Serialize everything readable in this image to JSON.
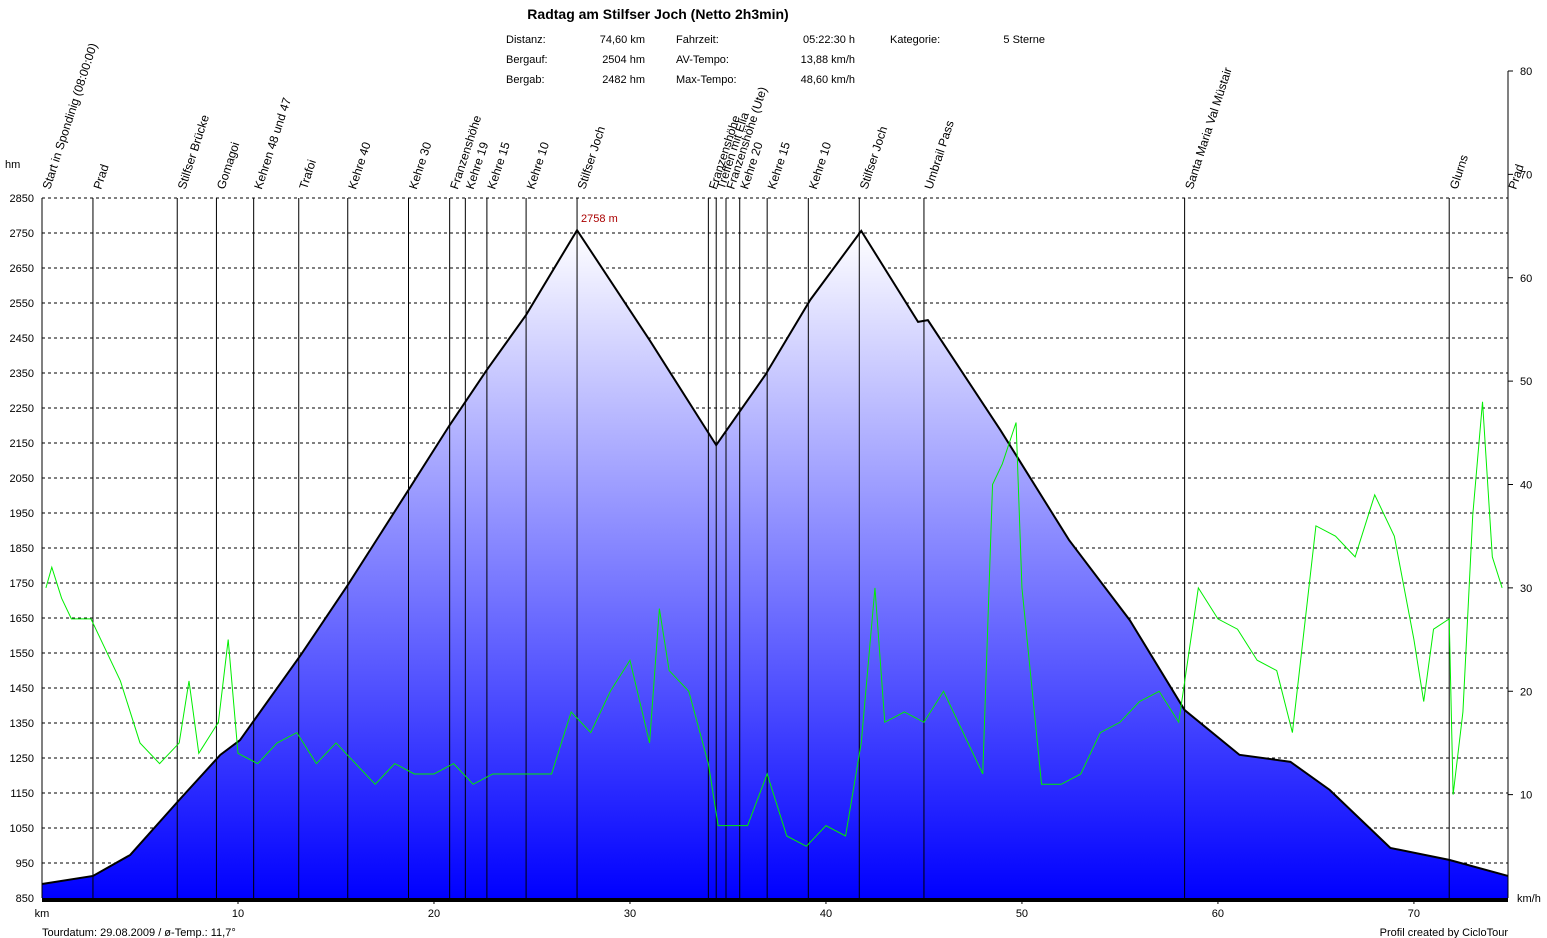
{
  "chart_data": {
    "type": "profile",
    "title": "Radtag am Stilfser Joch (Netto 2h3min)",
    "stats": [
      {
        "label": "Distanz:",
        "value": "74,60 km"
      },
      {
        "label": "Bergauf:",
        "value": "2504 hm"
      },
      {
        "label": "Bergab:",
        "value": "2482 hm"
      },
      {
        "label": "Fahrzeit:",
        "value": "05:22:30 h"
      },
      {
        "label": "AV-Tempo:",
        "value": "13,88 km/h"
      },
      {
        "label": "Max-Tempo:",
        "value": "48,60 km/h"
      },
      {
        "label": "Kategorie:",
        "value": "5 Sterne"
      }
    ],
    "y_label": "hm",
    "x_label": "km",
    "y2_label": "km/h",
    "footer_left": "Tourdatum: 29.08.2009  /  ø-Temp.: 11,7°",
    "footer_right": "Profil created by CicloTour",
    "xlim": [
      0,
      74.8
    ],
    "xticks": [
      10,
      20,
      30,
      40,
      50,
      60,
      70
    ],
    "ylim": [
      850,
      2850
    ],
    "yticks": [
      850,
      950,
      1050,
      1150,
      1250,
      1350,
      1450,
      1550,
      1650,
      1750,
      1850,
      1950,
      2050,
      2150,
      2250,
      2350,
      2450,
      2550,
      2650,
      2750,
      2850
    ],
    "y2lim": [
      0,
      80
    ],
    "y2ticks": [
      10,
      20,
      30,
      40,
      50,
      60,
      70,
      80
    ],
    "grid": true,
    "annotations": [
      {
        "text": "2758 m",
        "x": 27.3,
        "y": 2758
      }
    ],
    "elevation": {
      "color": "#0000ff",
      "x": [
        0,
        2.6,
        4.5,
        7,
        9.1,
        10.1,
        13.2,
        15.6,
        18.7,
        20.8,
        22.7,
        24.7,
        27.3,
        31,
        34.4,
        36.9,
        39.2,
        41.8,
        44.7,
        45.2,
        48.9,
        52.4,
        55.5,
        58.3,
        61.1,
        63.7,
        65.7,
        68.8,
        71.8,
        74.8
      ],
      "values": [
        890,
        913,
        973,
        1130,
        1259,
        1301,
        1544,
        1744,
        2016,
        2201,
        2359,
        2516,
        2758,
        2444,
        2144,
        2344,
        2559,
        2756,
        2496,
        2501,
        2187,
        1873,
        1644,
        1387,
        1259,
        1239,
        1159,
        993,
        959,
        913
      ]
    },
    "speed": {
      "color": "#00ee00",
      "axis": "y2",
      "x": [
        0.2,
        0.5,
        1,
        1.5,
        2.5,
        3,
        4,
        5,
        6,
        7,
        7.5,
        8,
        9,
        9.5,
        10,
        11,
        12,
        13,
        14,
        15,
        16,
        17,
        18,
        19,
        20,
        21,
        22,
        23,
        24,
        25,
        26,
        27,
        28,
        29,
        30,
        31,
        31.5,
        32,
        33,
        34,
        34.5,
        36,
        37,
        38,
        39,
        40,
        41,
        41.8,
        42.5,
        43,
        44,
        45,
        46,
        47,
        48,
        48.5,
        49,
        49.7,
        50,
        51,
        52,
        53,
        54,
        55,
        56,
        57,
        58,
        59,
        60,
        61,
        62,
        63,
        63.8,
        65,
        66,
        67,
        68,
        69,
        70,
        70.5,
        71,
        71.8,
        72,
        72.5,
        73,
        73.5,
        74,
        74.5
      ],
      "values": [
        30,
        32,
        29,
        27,
        27,
        25,
        21,
        15,
        13,
        15,
        21,
        14,
        17,
        25,
        14,
        13,
        15,
        16,
        13,
        15,
        13,
        11,
        13,
        12,
        12,
        13,
        11,
        12,
        12,
        12,
        12,
        18,
        16,
        20,
        23,
        15,
        28,
        22,
        20,
        13,
        7,
        7,
        12,
        6,
        5,
        7,
        6,
        15,
        30,
        17,
        18,
        17,
        20,
        16,
        12,
        40,
        42,
        46,
        30,
        11,
        11,
        12,
        16,
        17,
        19,
        20,
        17,
        30,
        27,
        26,
        23,
        22,
        16,
        36,
        35,
        33,
        39,
        35,
        25,
        19,
        26,
        27,
        10,
        18,
        37,
        48,
        33,
        30
      ]
    },
    "waypoints": [
      {
        "name": "Start in Spondinig (08:00:00)",
        "x": 0
      },
      {
        "name": "Prad",
        "x": 2.6
      },
      {
        "name": "Stilfser Brücke",
        "x": 6.9
      },
      {
        "name": "Gomagoi",
        "x": 8.9
      },
      {
        "name": "Kehren 48 und 47",
        "x": 10.8
      },
      {
        "name": "Trafoi",
        "x": 13.1
      },
      {
        "name": "Kehre 40",
        "x": 15.6
      },
      {
        "name": "Kehre 30",
        "x": 18.7
      },
      {
        "name": "Franzenshöhe",
        "x": 20.8
      },
      {
        "name": "Kehre 19",
        "x": 21.6
      },
      {
        "name": "Kehre 15",
        "x": 22.7
      },
      {
        "name": "Kehre 10",
        "x": 24.7
      },
      {
        "name": "Stilfser Joch",
        "x": 27.3
      },
      {
        "name": "Franzenshöhe",
        "x": 34.0
      },
      {
        "name": "Treffen mit Elia",
        "x": 34.4
      },
      {
        "name": "Franzenshöhe (Ute)",
        "x": 34.9
      },
      {
        "name": "Kehre 20",
        "x": 35.6
      },
      {
        "name": "Kehre 15",
        "x": 37.0
      },
      {
        "name": "Kehre 10",
        "x": 39.1
      },
      {
        "name": "Stilfser Joch",
        "x": 41.7
      },
      {
        "name": "Umbrail Pass",
        "x": 45.0
      },
      {
        "name": "Santa Maria Val Müstair",
        "x": 58.3
      },
      {
        "name": "Glurns",
        "x": 71.8
      },
      {
        "name": "Prad",
        "x": 74.8
      }
    ]
  }
}
